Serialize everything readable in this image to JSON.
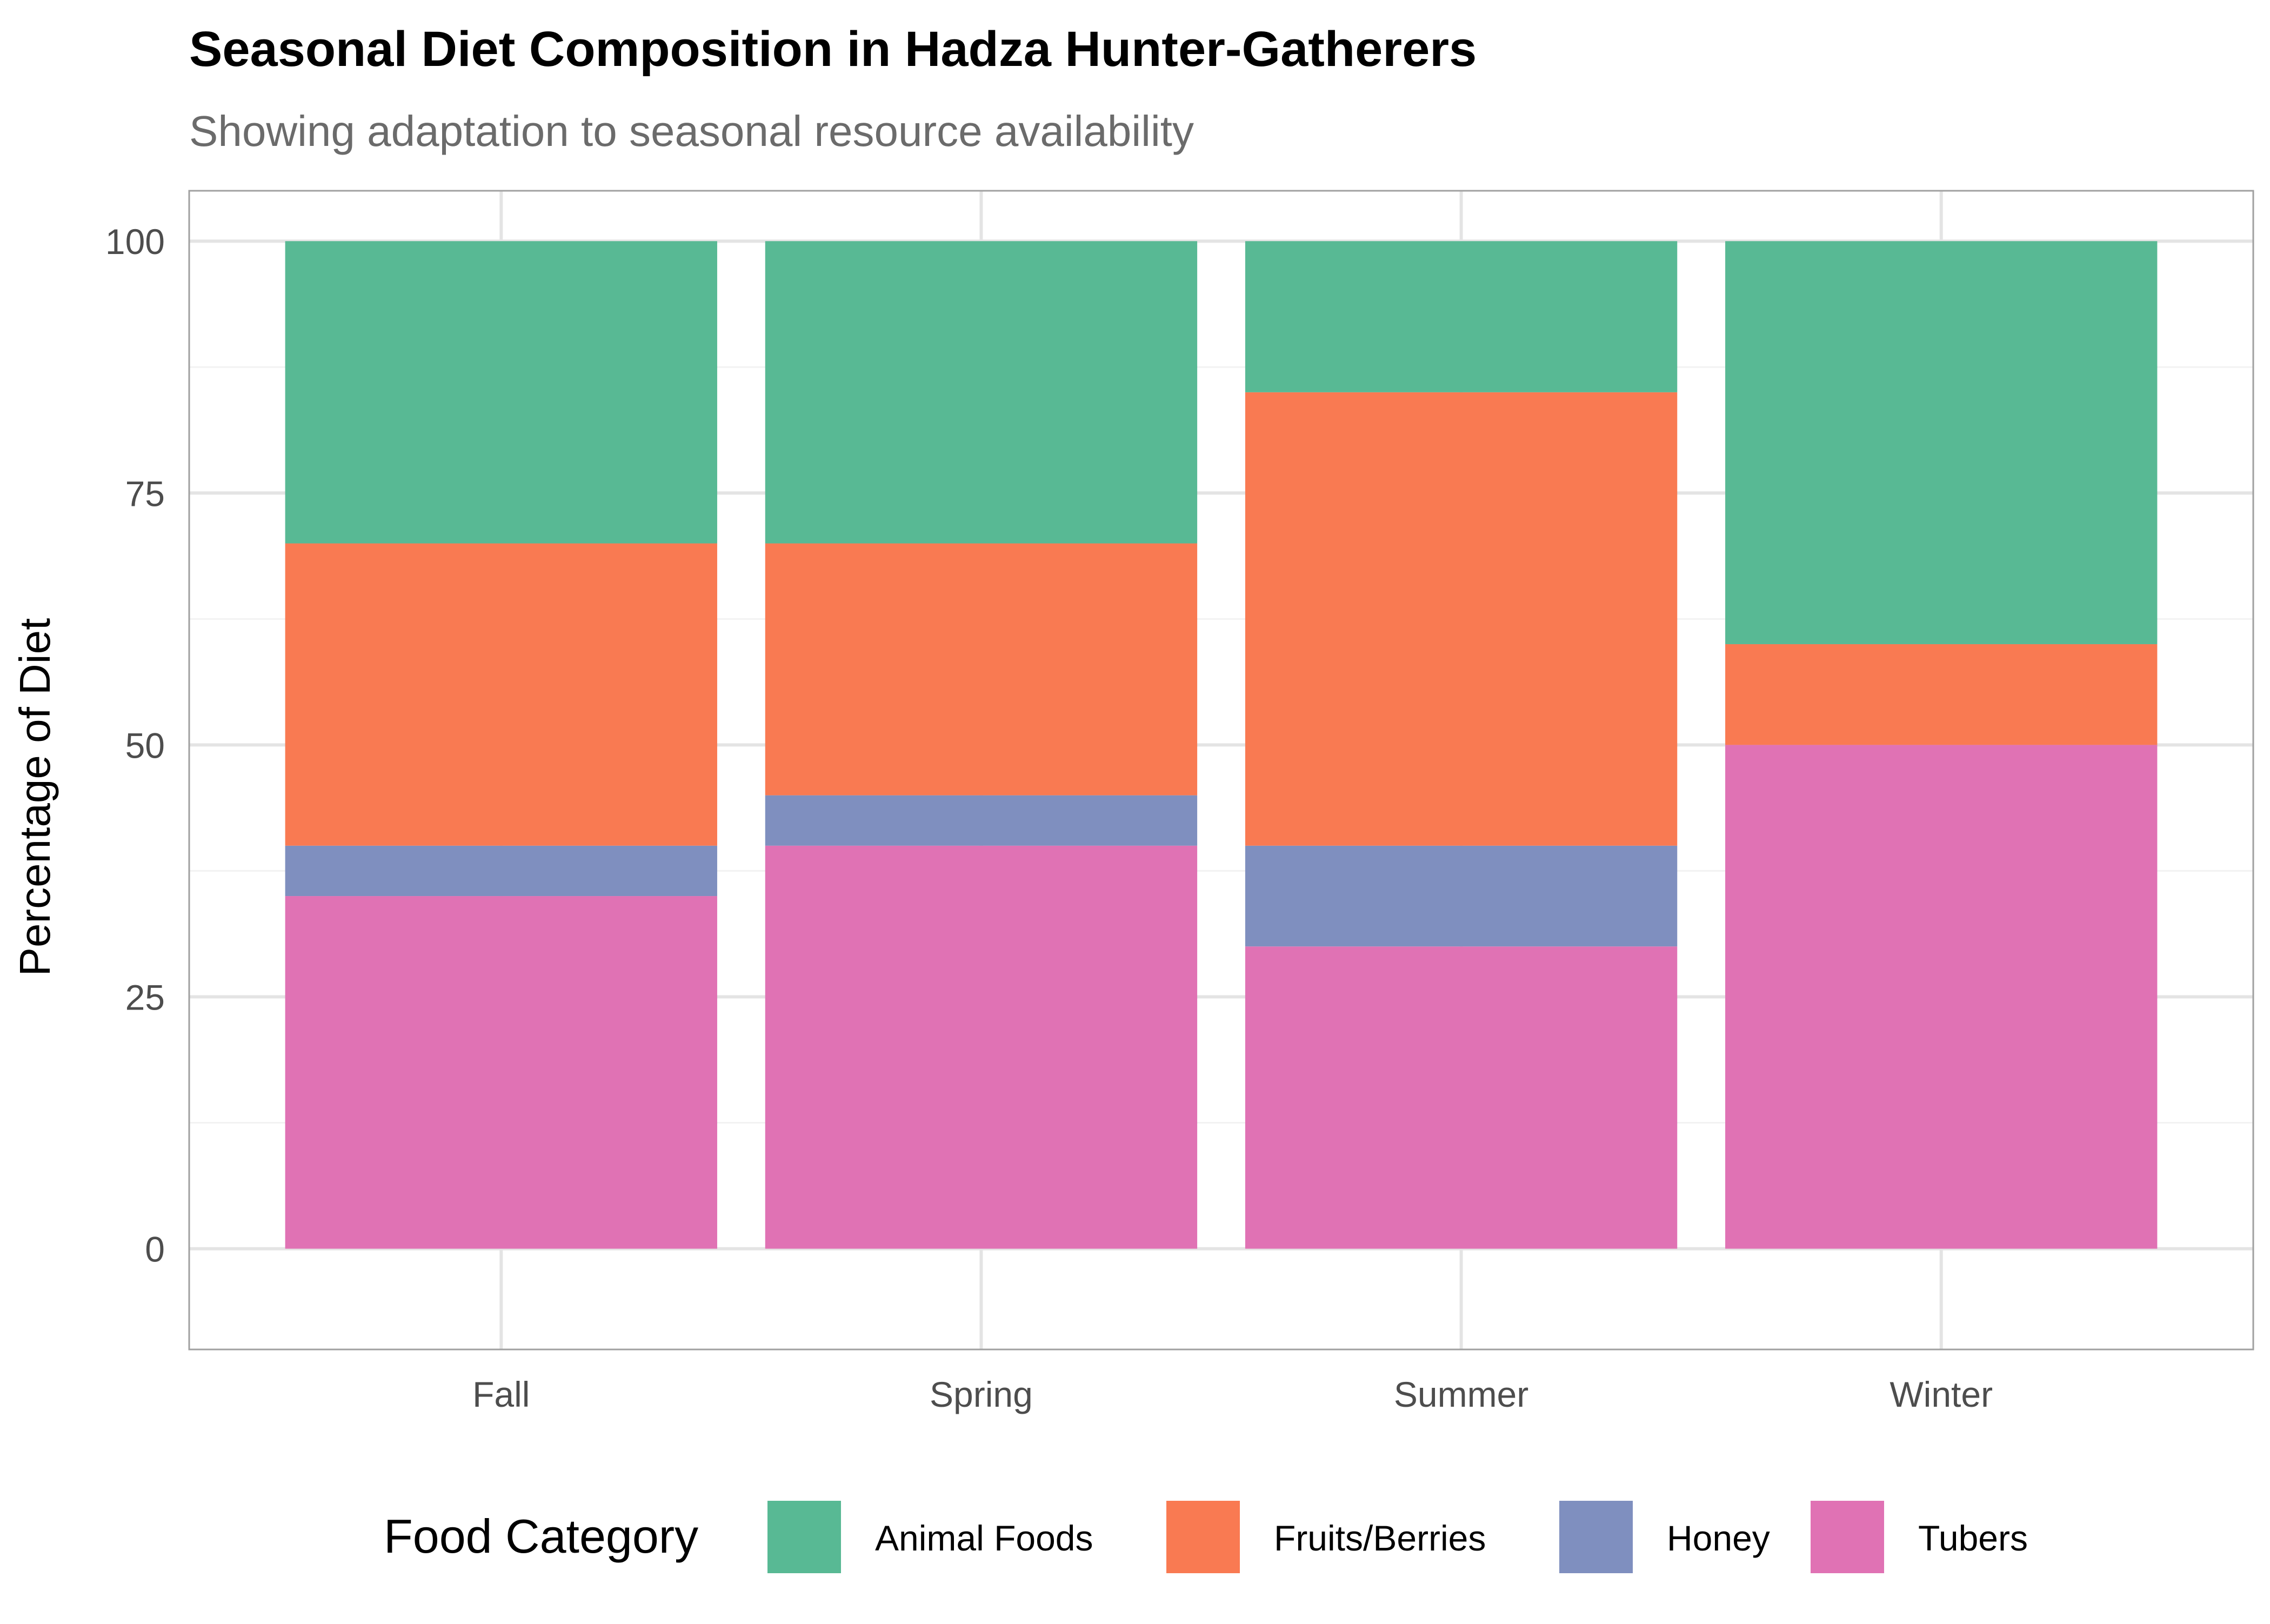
{
  "chart_data": {
    "type": "bar",
    "stacked": true,
    "title": "Seasonal Diet Composition in Hadza Hunter-Gatherers",
    "subtitle": "Showing adaptation to seasonal resource availability",
    "xlabel": "",
    "ylabel": "Percentage of Diet",
    "ylim": [
      -10,
      105
    ],
    "yticks": [
      0,
      25,
      50,
      75,
      100
    ],
    "categories": [
      "Fall",
      "Spring",
      "Summer",
      "Winter"
    ],
    "grid": true,
    "legend": {
      "title": "Food Category",
      "position": "bottom"
    },
    "series": [
      {
        "name": "Tubers",
        "color": "#E072B4",
        "values": [
          35,
          40,
          30,
          50
        ]
      },
      {
        "name": "Honey",
        "color": "#7F8FBF",
        "values": [
          5,
          5,
          10,
          0
        ]
      },
      {
        "name": "Fruits/Berries",
        "color": "#F97A52",
        "values": [
          30,
          25,
          45,
          10
        ]
      },
      {
        "name": "Animal Foods",
        "color": "#58B994",
        "values": [
          30,
          30,
          15,
          40
        ]
      }
    ],
    "legend_order": [
      "Animal Foods",
      "Fruits/Berries",
      "Honey",
      "Tubers"
    ]
  }
}
